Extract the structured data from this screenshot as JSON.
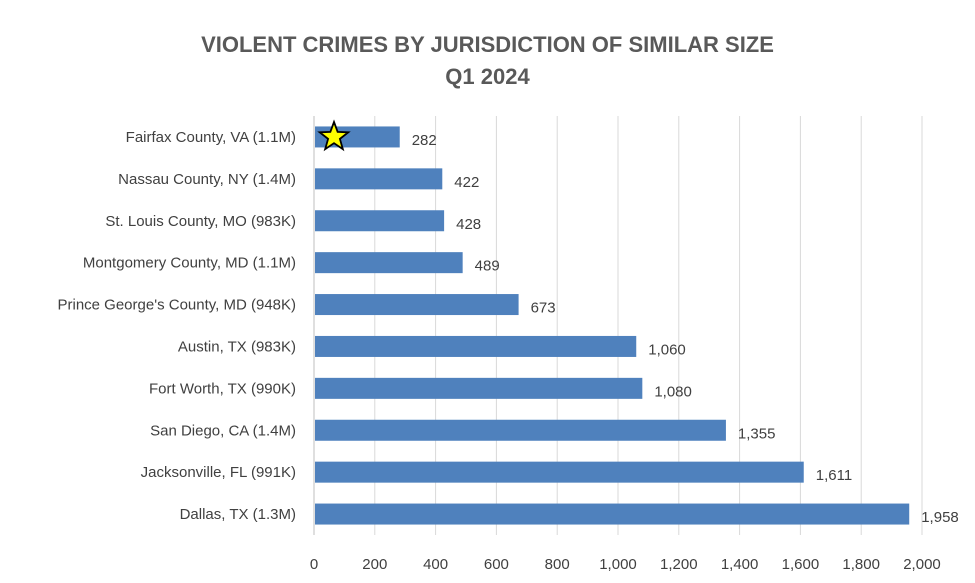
{
  "chart_data": {
    "type": "bar",
    "orientation": "horizontal",
    "title_lines": [
      "VIOLENT CRIMES BY JURISDICTION OF SIMILAR SIZE",
      "Q1 2024"
    ],
    "categories": [
      "Fairfax County, VA (1.1M)",
      "Nassau County, NY (1.4M)",
      "St. Louis County, MO (983K)",
      "Montgomery County, MD (1.1M)",
      "Prince George's County, MD (948K)",
      "Austin, TX (983K)",
      "Fort Worth, TX (990K)",
      "San Diego, CA (1.4M)",
      "Jacksonville, FL (991K)",
      "Dallas, TX (1.3M)"
    ],
    "values": [
      282,
      422,
      428,
      489,
      673,
      1060,
      1080,
      1355,
      1611,
      1958
    ],
    "value_labels": [
      "282",
      "422",
      "428",
      "489",
      "673",
      "1,060",
      "1,080",
      "1,355",
      "1,611",
      "1,958"
    ],
    "xlim": [
      0,
      2000
    ],
    "x_ticks": [
      0,
      200,
      400,
      600,
      800,
      1000,
      1200,
      1400,
      1600,
      1800,
      2000
    ],
    "x_tick_labels": [
      "0",
      "200",
      "400",
      "600",
      "800",
      "1,000",
      "1,200",
      "1,400",
      "1,600",
      "1,800",
      "2,000"
    ],
    "xlabel": "",
    "ylabel": "",
    "grid": true,
    "bar_color": "#4F81BD",
    "grid_color": "#D9D9D9",
    "highlight": {
      "category": "Fairfax County, VA (1.1M)",
      "marker": "star-icon",
      "color": "#FFFF00"
    }
  }
}
